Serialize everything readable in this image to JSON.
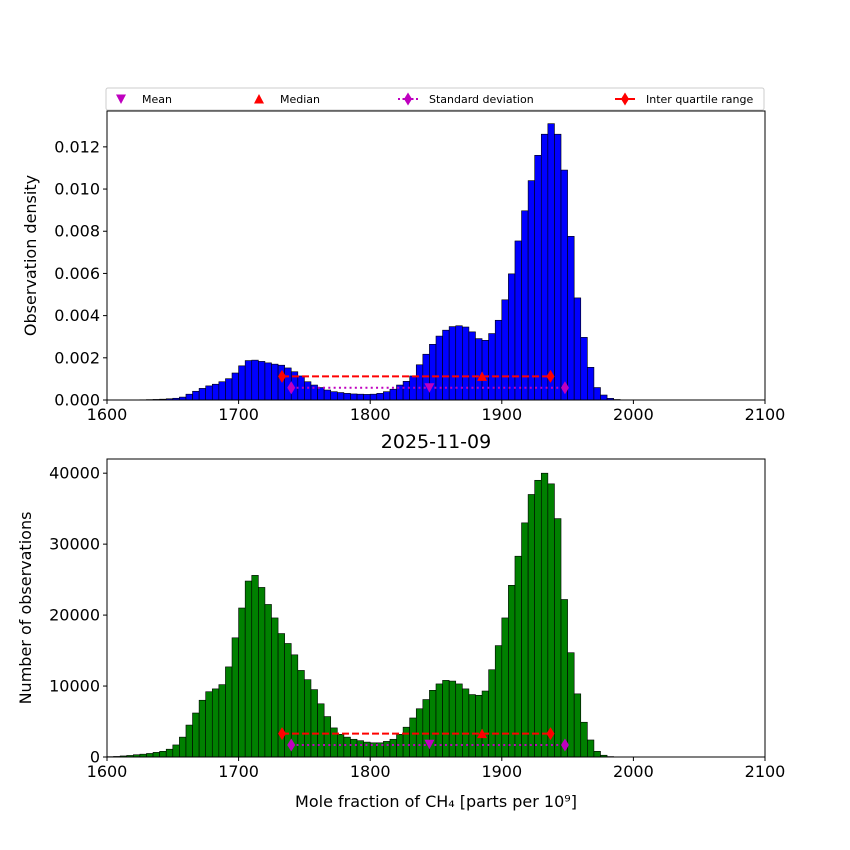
{
  "legend": {
    "items": [
      {
        "label": "Mean",
        "marker": "triangle-down",
        "color": "#bf00bf"
      },
      {
        "label": "Median",
        "marker": "triangle-up",
        "color": "#ff0000"
      },
      {
        "label": "Standard deviation",
        "marker": "diamond-dotted-line",
        "color": "#bf00bf"
      },
      {
        "label": "Inter quartile range",
        "marker": "diamond-solid-line",
        "color": "#ff0000"
      }
    ]
  },
  "chart_data": [
    {
      "type": "bar",
      "title": "",
      "xlabel": "",
      "ylabel": "Observation density",
      "xlim": [
        1600,
        2100
      ],
      "ylim": [
        0,
        0.0137
      ],
      "x_ticks": [
        1600,
        1700,
        1800,
        1900,
        2000,
        2100
      ],
      "y_ticks": [
        0.0,
        0.002,
        0.004,
        0.006,
        0.008,
        0.01,
        0.012
      ],
      "y_tick_labels": [
        "0.000",
        "0.002",
        "0.004",
        "0.006",
        "0.008",
        "0.010",
        "0.012"
      ],
      "bar_color": "#0000ff",
      "bin_start": 1610,
      "bin_width": 5,
      "values": [
        3.9e-06,
        3.9e-06,
        7.9e-06,
        1.18e-05,
        1.97e-05,
        2.76e-05,
        3.94e-05,
        5.91e-05,
        8.27e-05,
        0.000138,
        0.000276,
        0.000414,
        0.000551,
        0.000669,
        0.000748,
        0.000866,
        0.00101,
        0.00128,
        0.00162,
        0.00187,
        0.00189,
        0.00183,
        0.00176,
        0.0017,
        0.00165,
        0.00152,
        0.00134,
        0.00114,
        0.000866,
        0.000709,
        0.000591,
        0.000473,
        0.000394,
        0.000354,
        0.000315,
        0.000287,
        0.000276,
        0.000266,
        0.000276,
        0.000315,
        0.000394,
        0.000512,
        0.000709,
        0.000886,
        0.00114,
        0.00167,
        0.00217,
        0.00264,
        0.00303,
        0.00331,
        0.00348,
        0.00352,
        0.00346,
        0.00323,
        0.00291,
        0.00283,
        0.00315,
        0.00378,
        0.00475,
        0.00598,
        0.00754,
        0.00897,
        0.0104,
        0.0116,
        0.0126,
        0.0131,
        0.0126,
        0.0109,
        0.00776,
        0.00484,
        0.00297,
        0.00155,
        0.000591,
        0.000236,
        7.87e-05,
        2.36e-05,
        7.9e-06
      ],
      "series": [
        {
          "name": "Mean",
          "x": [
            1845
          ],
          "y": [
            0.00058
          ]
        },
        {
          "name": "Median",
          "x": [
            1885
          ],
          "y": [
            0.00112
          ]
        },
        {
          "name": "Standard deviation",
          "x": [
            1740,
            1948
          ],
          "y": [
            0.00058,
            0.00058
          ]
        },
        {
          "name": "Inter quartile range",
          "x": [
            1733,
            1937
          ],
          "y": [
            0.00112,
            0.00112
          ]
        }
      ]
    },
    {
      "type": "bar",
      "title": "2025-11-09",
      "xlabel": "Mole fraction of CH₄ [parts per 10⁹]",
      "ylabel": "Number of observations",
      "xlim": [
        1600,
        2100
      ],
      "ylim": [
        0,
        42000
      ],
      "x_ticks": [
        1600,
        1700,
        1800,
        1900,
        2000,
        2100
      ],
      "y_ticks": [
        0,
        10000,
        20000,
        30000,
        40000
      ],
      "y_tick_labels": [
        "0",
        "10000",
        "20000",
        "30000",
        "40000"
      ],
      "bar_color": "#008000",
      "bin_start": 1600,
      "bin_width": 5,
      "values": [
        50,
        80,
        150,
        220,
        320,
        400,
        500,
        650,
        800,
        1100,
        1700,
        2800,
        4500,
        6200,
        8000,
        9200,
        9600,
        10200,
        12700,
        16800,
        21000,
        24800,
        25600,
        23900,
        21500,
        19600,
        17400,
        16000,
        14400,
        12200,
        10900,
        9500,
        7500,
        5700,
        4100,
        3200,
        2800,
        2500,
        2300,
        2100,
        2000,
        2000,
        2200,
        2500,
        3200,
        4200,
        5500,
        6800,
        8100,
        9400,
        10300,
        10800,
        10700,
        10300,
        9600,
        8800,
        8700,
        9300,
        12300,
        15700,
        19600,
        24200,
        28300,
        33000,
        37000,
        39000,
        40000,
        38500,
        33600,
        22200,
        14700,
        8900,
        4900,
        2400,
        800,
        250,
        60
      ],
      "series": [
        {
          "name": "Mean",
          "x": [
            1845
          ],
          "y": [
            1800
          ]
        },
        {
          "name": "Median",
          "x": [
            1885
          ],
          "y": [
            3300
          ]
        },
        {
          "name": "Standard deviation",
          "x": [
            1740,
            1948
          ],
          "y": [
            1700,
            1700
          ]
        },
        {
          "name": "Inter quartile range",
          "x": [
            1733,
            1937
          ],
          "y": [
            3300,
            3300
          ]
        }
      ]
    }
  ]
}
